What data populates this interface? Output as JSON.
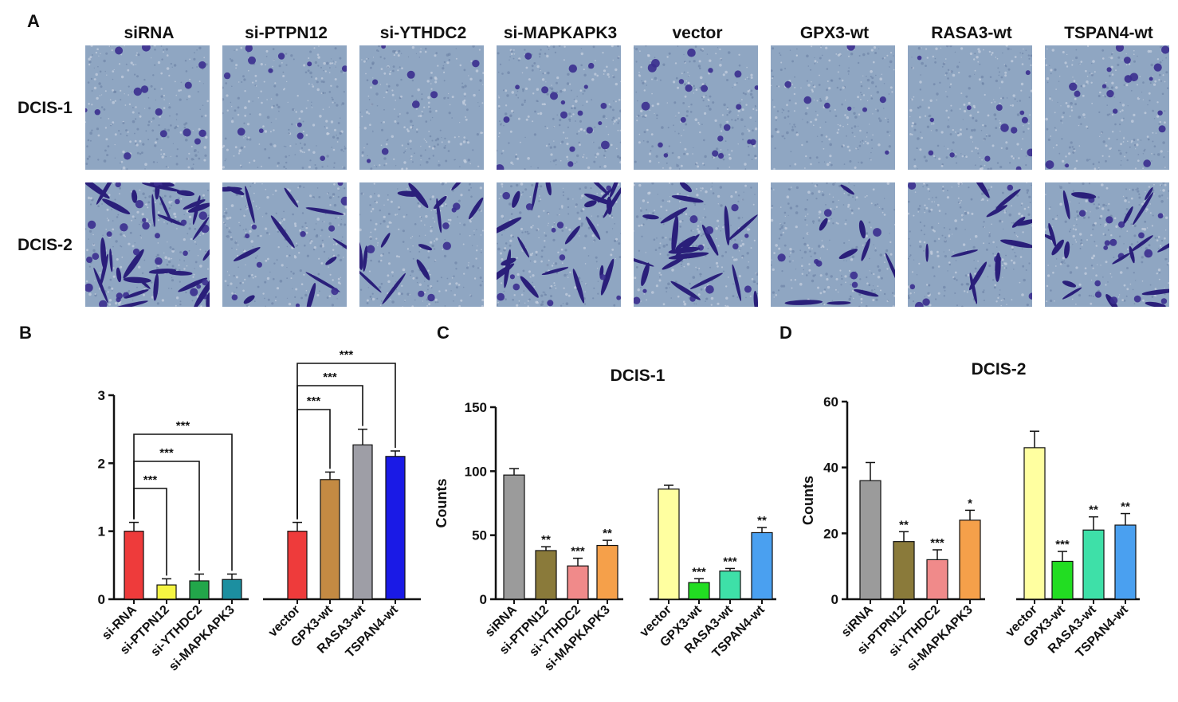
{
  "panels": {
    "a": "A",
    "b": "B",
    "c": "C",
    "d": "D"
  },
  "columns": [
    "siRNA",
    "si-PTPN12",
    "si-YTHDC2",
    "si-MAPKAPK3",
    "vector",
    "GPX3-wt",
    "RASA3-wt",
    "TSPAN4-wt"
  ],
  "rows": [
    "DCIS-1",
    "DCIS-2"
  ],
  "colors": {
    "micro_bg": "#8fa6c2",
    "cell": "#3b2f8f",
    "cell_dense": "#2a1f7a",
    "axis": "#111111"
  },
  "chart_data": [
    {
      "type": "bar",
      "title": "",
      "xlabel": "",
      "ylabel": "",
      "ylim": [
        0,
        3
      ],
      "yticks": [
        0,
        1,
        2,
        3
      ],
      "categories": [
        "si-RNA",
        "si-PTPN12",
        "si-YTHDC2",
        "si-MAPKAPK3",
        "vector",
        "GPX3-wt",
        "RASA3-wt",
        "TSPAN4-wt"
      ],
      "values": [
        1.0,
        0.21,
        0.27,
        0.29,
        1.0,
        1.76,
        2.27,
        2.1
      ],
      "errors": [
        0.13,
        0.09,
        0.1,
        0.08,
        0.13,
        0.11,
        0.23,
        0.08
      ],
      "colors": [
        "#ee3b3b",
        "#f5f542",
        "#22a64a",
        "#1c8fa0",
        "#ee3b3b",
        "#c48a43",
        "#9e9ea6",
        "#1a1ae6"
      ],
      "significance": [
        {
          "from": "si-RNA",
          "to": "si-PTPN12",
          "label": "***"
        },
        {
          "from": "si-RNA",
          "to": "si-YTHDC2",
          "label": "***"
        },
        {
          "from": "si-RNA",
          "to": "si-MAPKAPK3",
          "label": "***"
        },
        {
          "from": "vector",
          "to": "GPX3-wt",
          "label": "***"
        },
        {
          "from": "vector",
          "to": "RASA3-wt",
          "label": "***"
        },
        {
          "from": "vector",
          "to": "TSPAN4-wt",
          "label": "***"
        }
      ]
    },
    {
      "type": "bar",
      "title": "DCIS-1",
      "xlabel": "",
      "ylabel": "Counts",
      "ylim": [
        0,
        150
      ],
      "yticks": [
        0,
        50,
        100,
        150
      ],
      "categories": [
        "siRNA",
        "si-PTPN12",
        "si-YTHDC2",
        "si-MAPKAPK3",
        "vector",
        "GPX3-wt",
        "RASA3-wt",
        "TSPAN4-wt"
      ],
      "values": [
        97,
        38,
        26,
        42,
        86,
        13,
        22,
        52
      ],
      "errors": [
        5,
        3,
        6,
        4,
        3,
        3,
        2,
        4
      ],
      "colors": [
        "#9b9b9b",
        "#8a7a3a",
        "#f08a8a",
        "#f5a04a",
        "#ffffa0",
        "#22dd22",
        "#3ee0a8",
        "#4aa0f0"
      ],
      "annotations": [
        "",
        "**",
        "***",
        "**",
        "",
        "***",
        "***",
        "**"
      ]
    },
    {
      "type": "bar",
      "title": "DCIS-2",
      "xlabel": "",
      "ylabel": "Counts",
      "ylim": [
        0,
        60
      ],
      "yticks": [
        0,
        20,
        40,
        60
      ],
      "categories": [
        "siRNA",
        "si-PTPN12",
        "si-YTHDC2",
        "si-MAPKAPK3",
        "vector",
        "GPX3-wt",
        "RASA3-wt",
        "TSPAN4-wt"
      ],
      "values": [
        36,
        17.5,
        12,
        24,
        46,
        11.5,
        21,
        22.5
      ],
      "errors": [
        5.5,
        3,
        3,
        3,
        5,
        3,
        4,
        3.5
      ],
      "colors": [
        "#9b9b9b",
        "#8a7a3a",
        "#f08a8a",
        "#f5a04a",
        "#ffffa0",
        "#22dd22",
        "#3ee0a8",
        "#4aa0f0"
      ],
      "annotations": [
        "",
        "**",
        "***",
        "*",
        "",
        "***",
        "**",
        "**"
      ]
    }
  ]
}
